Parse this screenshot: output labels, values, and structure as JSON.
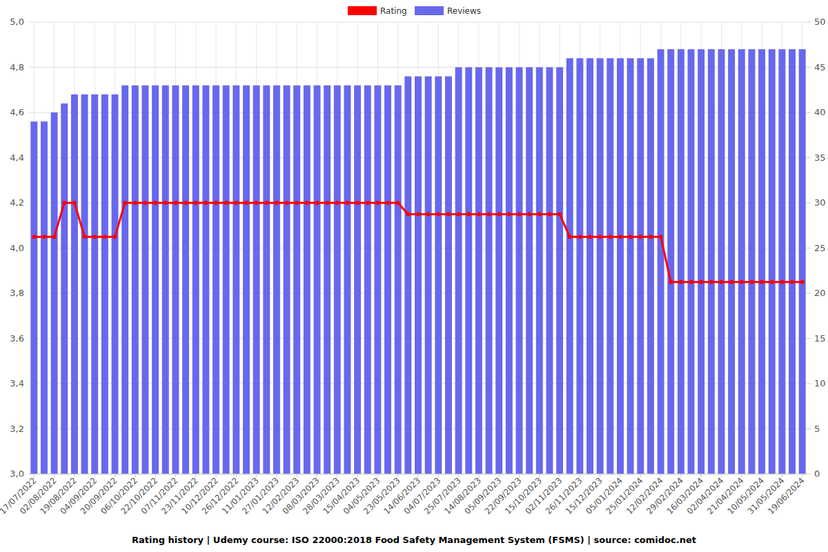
{
  "chart_data": {
    "type": "bar",
    "title": "Rating history | Udemy course: ISO 22000:2018 Food Safety Management System (FSMS) | source: comidoc.net",
    "categories": [
      "17/07/2022",
      null,
      "02/08/2022",
      null,
      "19/08/2022",
      null,
      "04/09/2022",
      null,
      "20/09/2022",
      null,
      "06/10/2022",
      null,
      "22/10/2022",
      null,
      "07/11/2022",
      null,
      "23/11/2022",
      null,
      "10/12/2022",
      null,
      "26/12/2022",
      null,
      "11/01/2023",
      null,
      "27/01/2023",
      null,
      "12/02/2023",
      null,
      "08/03/2023",
      null,
      "28/03/2023",
      null,
      "15/04/2023",
      null,
      "04/05/2023",
      null,
      "23/05/2023",
      null,
      "14/06/2023",
      null,
      "04/07/2023",
      null,
      "25/07/2023",
      null,
      "14/08/2023",
      null,
      "05/09/2023",
      null,
      "22/09/2023",
      null,
      "15/10/2023",
      null,
      "02/11/2023",
      null,
      "26/11/2023",
      null,
      "15/12/2023",
      null,
      "05/01/2024",
      null,
      "25/01/2024",
      null,
      "12/02/2024",
      null,
      "29/02/2024",
      null,
      "16/03/2024",
      null,
      "02/04/2024",
      null,
      "21/04/2024",
      null,
      "10/05/2024",
      null,
      "31/05/2024",
      null,
      "19/06/2024"
    ],
    "series": [
      {
        "name": "Rating",
        "type": "line",
        "color": "#ff0000",
        "marker": "circle",
        "values": [
          4.05,
          4.05,
          4.05,
          4.2,
          4.2,
          4.05,
          4.05,
          4.05,
          4.05,
          4.2,
          4.2,
          4.2,
          4.2,
          4.2,
          4.2,
          4.2,
          4.2,
          4.2,
          4.2,
          4.2,
          4.2,
          4.2,
          4.2,
          4.2,
          4.2,
          4.2,
          4.2,
          4.2,
          4.2,
          4.2,
          4.2,
          4.2,
          4.2,
          4.2,
          4.2,
          4.2,
          4.2,
          4.15,
          4.15,
          4.15,
          4.15,
          4.15,
          4.15,
          4.15,
          4.15,
          4.15,
          4.15,
          4.15,
          4.15,
          4.15,
          4.15,
          4.15,
          4.15,
          4.05,
          4.05,
          4.05,
          4.05,
          4.05,
          4.05,
          4.05,
          4.05,
          4.05,
          4.05,
          3.85,
          3.85,
          3.85,
          3.85,
          3.85,
          3.85,
          3.85,
          3.85,
          3.85,
          3.85,
          3.85,
          3.85,
          3.85,
          3.85
        ]
      },
      {
        "name": "Reviews",
        "type": "bar",
        "color": "#6868ee",
        "axis": "y2",
        "values": [
          39,
          39,
          40,
          41,
          42,
          42,
          42,
          42,
          42,
          43,
          43,
          43,
          43,
          43,
          43,
          43,
          43,
          43,
          43,
          43,
          43,
          43,
          43,
          43,
          43,
          43,
          43,
          43,
          43,
          43,
          43,
          43,
          43,
          43,
          43,
          43,
          43,
          44,
          44,
          44,
          44,
          44,
          45,
          45,
          45,
          45,
          45,
          45,
          45,
          45,
          45,
          45,
          45,
          46,
          46,
          46,
          46,
          46,
          46,
          46,
          46,
          46,
          47,
          47,
          47,
          47,
          47,
          47,
          47,
          47,
          47,
          47,
          47,
          47,
          47,
          47,
          47
        ]
      }
    ],
    "ylim": [
      3,
      5
    ],
    "yticks": [
      {
        "value": 3,
        "label": "3,0"
      },
      {
        "value": 3.2,
        "label": "3,2"
      },
      {
        "value": 3.4,
        "label": "3,4"
      },
      {
        "value": 3.6,
        "label": "3,6"
      },
      {
        "value": 3.8,
        "label": "3,8"
      },
      {
        "value": 4,
        "label": "4,0"
      },
      {
        "value": 4.2,
        "label": "4,2"
      },
      {
        "value": 4.4,
        "label": "4,4"
      },
      {
        "value": 4.6,
        "label": "4,6"
      },
      {
        "value": 4.8,
        "label": "4,8"
      },
      {
        "value": 5,
        "label": "5,0"
      }
    ],
    "y2lim": [
      0,
      50
    ],
    "y2ticks": [
      0,
      5,
      10,
      15,
      20,
      25,
      30,
      35,
      40,
      45,
      50
    ],
    "grid": true,
    "legend": "top"
  }
}
